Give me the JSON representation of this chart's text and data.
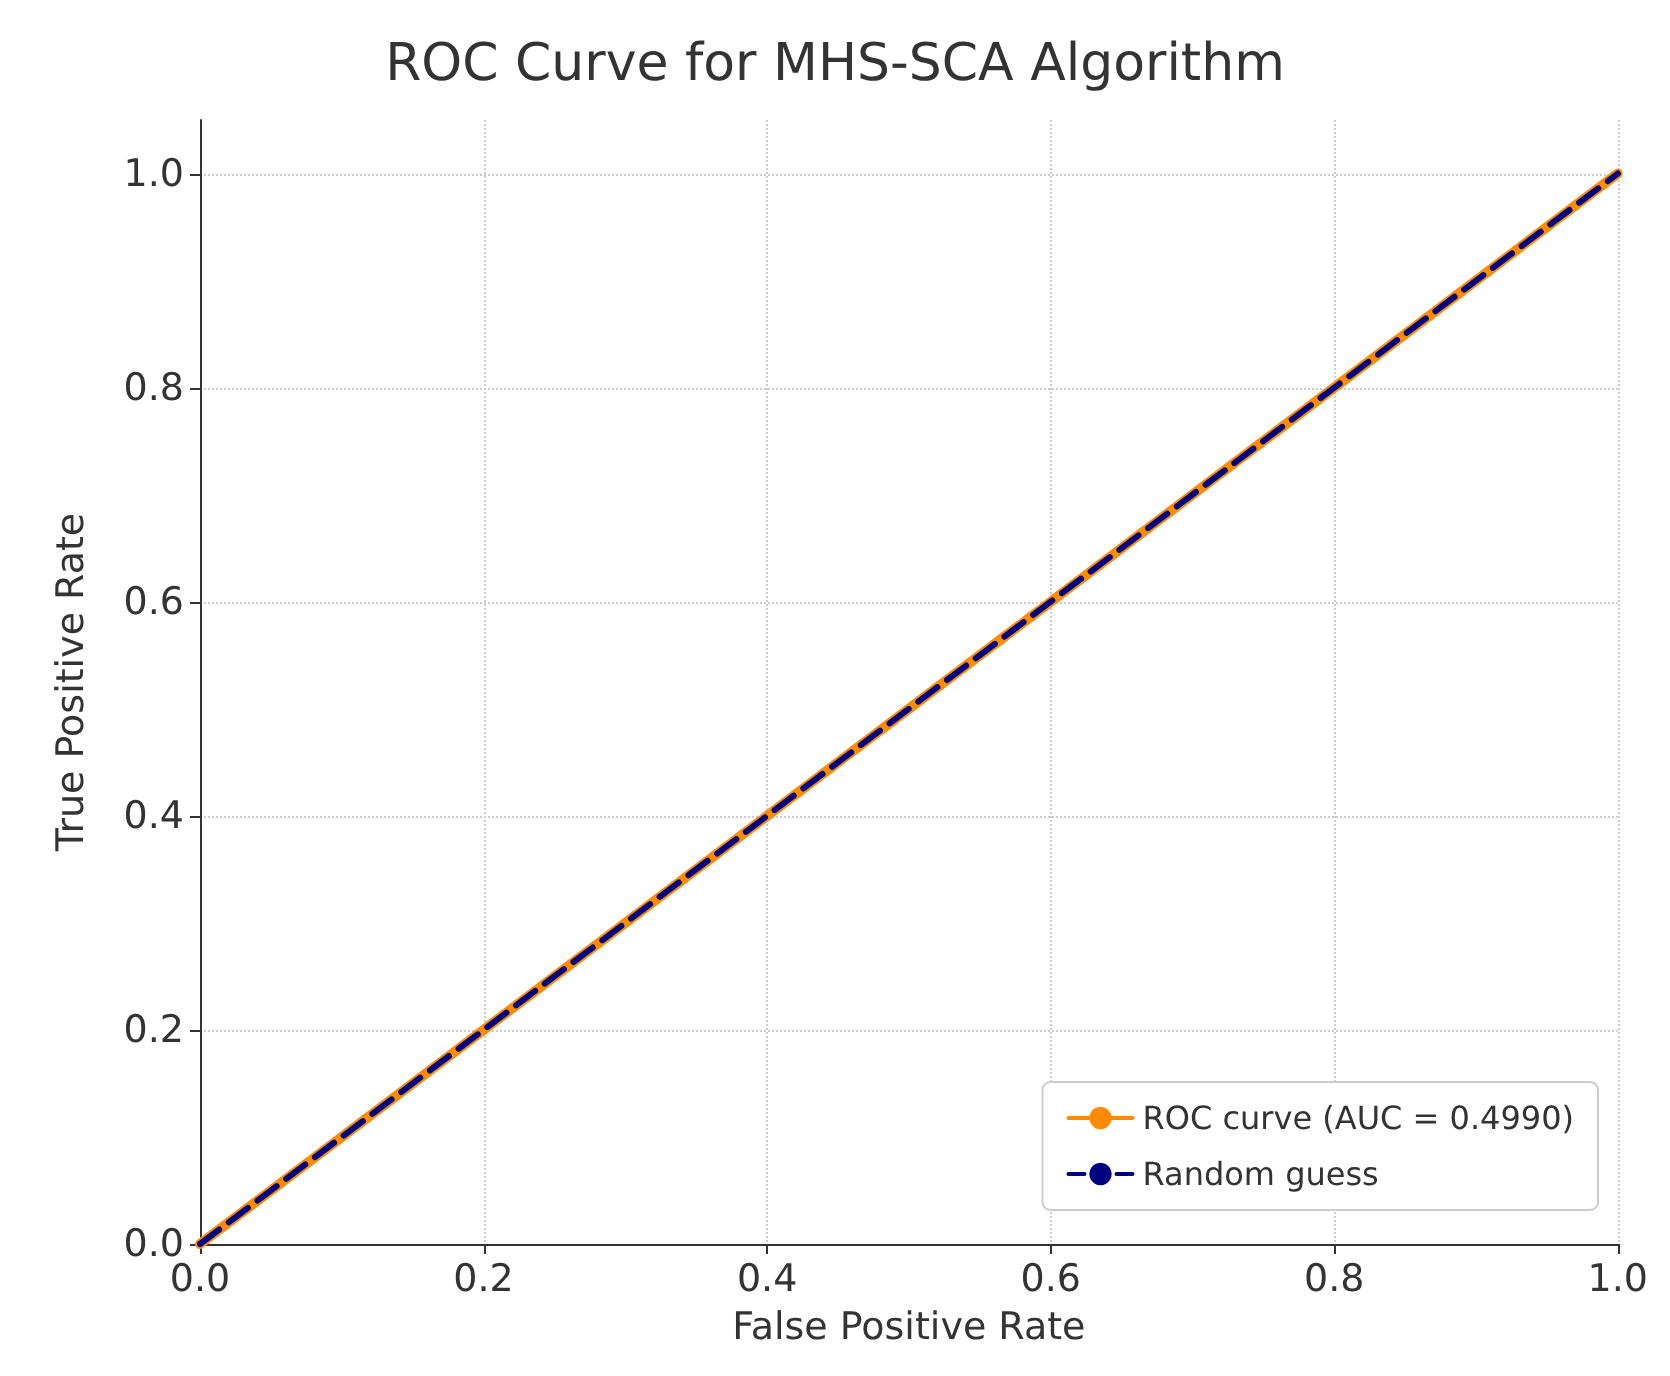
{
  "chart_data": {
    "type": "line",
    "title": "ROC Curve for MHS-SCA Algorithm",
    "xlabel": "False Positive Rate",
    "ylabel": "True Positive Rate",
    "x": [
      0,
      1
    ],
    "series": [
      {
        "name": "ROC curve (AUC = 0.4990)",
        "color": "#ff8c00",
        "values": [
          0,
          1
        ],
        "line_style": "solid"
      },
      {
        "name": "Random guess",
        "color": "#000080",
        "values": [
          0,
          1
        ],
        "line_style": "dashed"
      }
    ],
    "xlim": [
      0,
      1
    ],
    "ylim": [
      0,
      1.05
    ],
    "xticks": [
      {
        "value": 0,
        "label": "0.0"
      },
      0.2,
      0.4,
      0.6,
      0.8,
      {
        "value": 1,
        "label": "1.0"
      }
    ],
    "yticks": [
      {
        "value": 0,
        "label": "0.0"
      },
      0.2,
      0.4,
      0.6,
      0.8,
      {
        "value": 1,
        "label": "1.0"
      }
    ],
    "grid": true,
    "legend": "bottom right",
    "marker": "none"
  }
}
